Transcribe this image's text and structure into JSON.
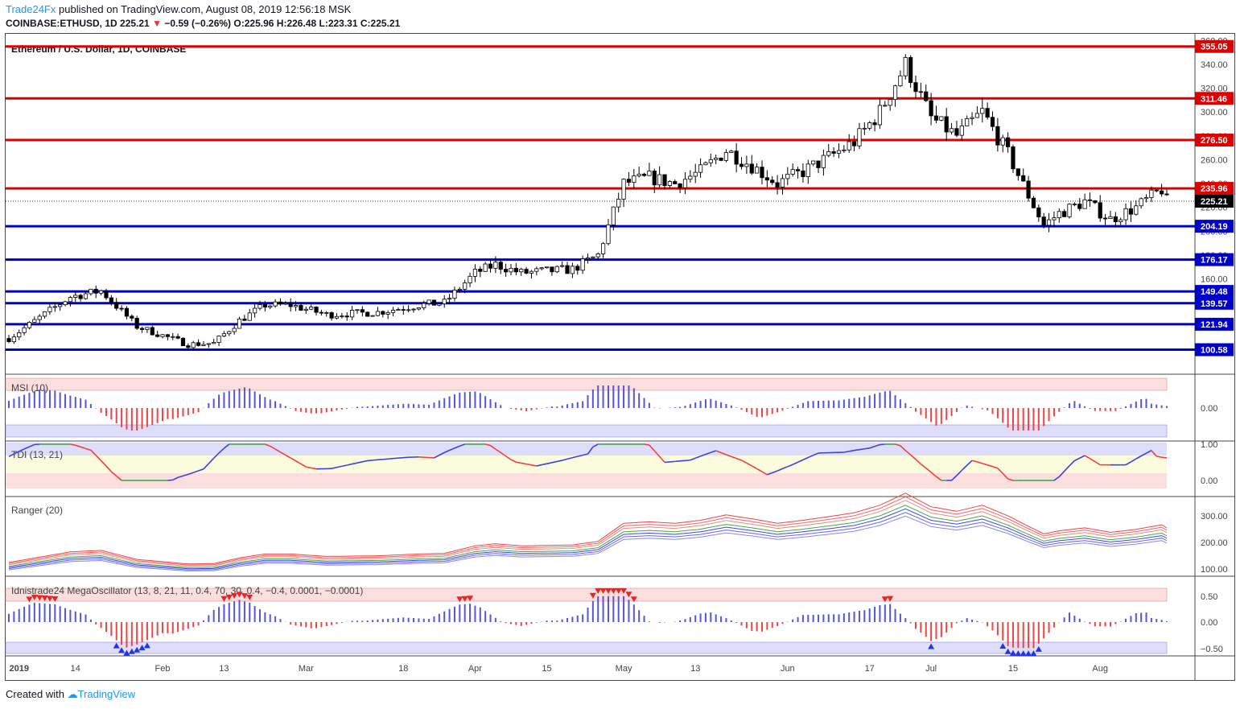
{
  "publish": {
    "author": "Trade24Fx",
    "rest": " published on TradingView.com, August 08, 2019 12:56:18 MSK"
  },
  "quote": {
    "symbol": "COINBASE:ETHUSD, 1D",
    "last": "225.21",
    "change": "−0.59 (−0.26%)",
    "o_label": "O:",
    "o": "225.96",
    "h_label": "H:",
    "h": "226.48",
    "l_label": "L:",
    "l": "223.31",
    "c_label": "C:",
    "c": "225.21"
  },
  "footer": {
    "created": "Created with",
    "brand": "TradingView"
  },
  "colors": {
    "support": "#0000cc",
    "resistance": "#dd0000",
    "bull": "#ffffff",
    "bear": "#000000",
    "up_bar": "#5555dd",
    "down_bar": "#ee4444"
  },
  "chart_data": [
    {
      "type": "candlestick",
      "title": "Ethereum / U.S. Dollar, 1D, COINBASE",
      "ylim": [
        80,
        365
      ],
      "y_ticks": [
        "160.00",
        "180.00",
        "200.00",
        "220.00",
        "240.00",
        "260.00",
        "280.00",
        "300.00",
        "320.00",
        "340.00",
        "360.00"
      ],
      "x_ticks": [
        "2019",
        "14",
        "Feb",
        "13",
        "Mar",
        "18",
        "Apr",
        "15",
        "May",
        "13",
        "Jun",
        "17",
        "Jul",
        "15",
        "Aug"
      ],
      "last_price": "225.21",
      "resistance_levels": [
        "355.05",
        "311.46",
        "276.50",
        "235.96"
      ],
      "support_levels": [
        "204.19",
        "176.17",
        "149.48",
        "139.57",
        "121.94",
        "100.58"
      ],
      "close_anchors": [
        [
          0,
          110
        ],
        [
          12,
          145
        ],
        [
          18,
          150
        ],
        [
          25,
          120
        ],
        [
          35,
          105
        ],
        [
          40,
          106
        ],
        [
          45,
          125
        ],
        [
          50,
          138
        ],
        [
          55,
          138
        ],
        [
          62,
          130
        ],
        [
          72,
          132
        ],
        [
          80,
          138
        ],
        [
          85,
          140
        ],
        [
          91,
          165
        ],
        [
          95,
          172
        ],
        [
          100,
          165
        ],
        [
          110,
          168
        ],
        [
          115,
          180
        ],
        [
          120,
          240
        ],
        [
          125,
          245
        ],
        [
          130,
          240
        ],
        [
          135,
          250
        ],
        [
          140,
          268
        ],
        [
          145,
          255
        ],
        [
          150,
          240
        ],
        [
          155,
          250
        ],
        [
          160,
          262
        ],
        [
          165,
          275
        ],
        [
          170,
          300
        ],
        [
          175,
          340
        ],
        [
          180,
          295
        ],
        [
          185,
          280
        ],
        [
          190,
          300
        ],
        [
          195,
          265
        ],
        [
          199,
          230
        ],
        [
          202,
          205
        ],
        [
          205,
          215
        ],
        [
          210,
          225
        ],
        [
          215,
          210
        ],
        [
          220,
          220
        ],
        [
          225,
          235
        ],
        [
          226,
          225
        ]
      ]
    },
    {
      "type": "histogram",
      "title": "MSI (10)",
      "y_ticks": [
        "0.00"
      ]
    },
    {
      "type": "line",
      "title": "TDI (13, 21)",
      "y_ticks": [
        "1.00",
        "0.00"
      ]
    },
    {
      "type": "line",
      "title": "Ranger (20)",
      "y_ticks": [
        "300.00",
        "200.00",
        "100.00"
      ]
    },
    {
      "type": "histogram",
      "title": "Idnistrade24 MegaOscillator (13, 8, 21, 11, 0.4, 70, 30, 0.4, −0.4, 0.0001, −0.0001)",
      "y_ticks": [
        "0.50",
        "0.00",
        "−0.50"
      ]
    }
  ]
}
